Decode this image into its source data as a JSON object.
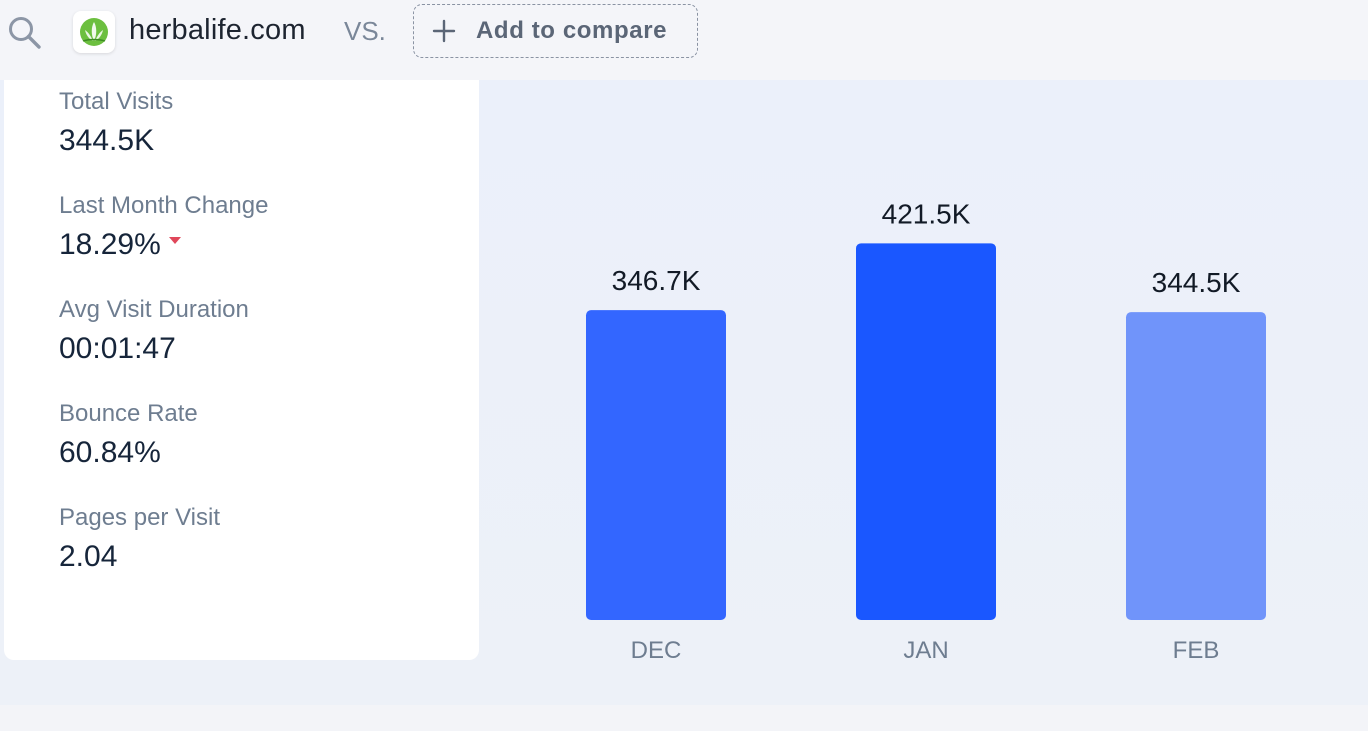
{
  "header": {
    "site_name": "herbalife.com",
    "vs_label": "VS.",
    "add_compare_label": "Add to compare"
  },
  "metrics": [
    {
      "label": "Total Visits",
      "value": "344.5K"
    },
    {
      "label": "Last Month Change",
      "value": "18.29%",
      "trend": "down"
    },
    {
      "label": "Avg Visit Duration",
      "value": "00:01:47"
    },
    {
      "label": "Bounce Rate",
      "value": "60.84%"
    },
    {
      "label": "Pages per Visit",
      "value": "2.04"
    }
  ],
  "colors": {
    "bar_dec": "#3366ff",
    "bar_jan": "#1a57ff",
    "bar_feb": "#7094fa",
    "trend_down": "#e0475a",
    "logo_green": "#6cbf3f"
  },
  "chart_data": {
    "type": "bar",
    "categories": [
      "DEC",
      "JAN",
      "FEB"
    ],
    "values": [
      346.7,
      421.5,
      344.5
    ],
    "value_labels": [
      "346.7K",
      "421.5K",
      "344.5K"
    ],
    "ylim": [
      0,
      470
    ],
    "grid": false
  }
}
